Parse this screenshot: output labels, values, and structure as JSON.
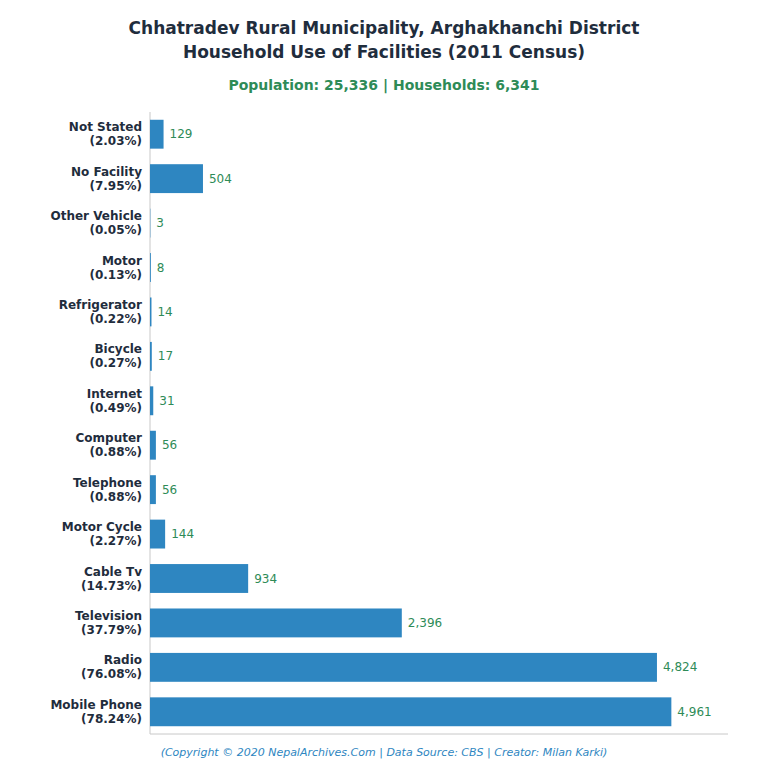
{
  "chart_data": {
    "type": "bar",
    "orientation": "horizontal",
    "title": "Chhatradev Rural Municipality, Arghakhanchi District\nHousehold Use of Facilities (2011 Census)",
    "subtitle": "Population: 25,336 | Households: 6,341",
    "annotations": [
      "(Copyright © 2020 NepalArchives.Com | Data Source: CBS | Creator: Milan Karki)"
    ],
    "categories": [
      "Not Stated\n(2.03%)",
      "No Facility\n(7.95%)",
      "Other Vehicle\n(0.05%)",
      "Motor\n(0.13%)",
      "Refrigerator\n(0.22%)",
      "Bicycle\n(0.27%)",
      "Internet\n(0.49%)",
      "Computer\n(0.88%)",
      "Telephone\n(0.88%)",
      "Motor Cycle\n(2.27%)",
      "Cable Tv\n(14.73%)",
      "Television\n(37.79%)",
      "Radio\n(76.08%)",
      "Mobile Phone\n(78.24%)"
    ],
    "values": [
      129,
      504,
      3,
      8,
      14,
      17,
      31,
      56,
      56,
      144,
      934,
      2396,
      4824,
      4961
    ],
    "value_labels": [
      "129",
      "504",
      "3",
      "8",
      "14",
      "17",
      "31",
      "56",
      "56",
      "144",
      "934",
      "2,396",
      "4,824",
      "4,961"
    ],
    "color": "#2e86c1",
    "xlim": [
      0,
      5500
    ],
    "data_labels": true,
    "tick_labels": "y",
    "grid": false
  }
}
